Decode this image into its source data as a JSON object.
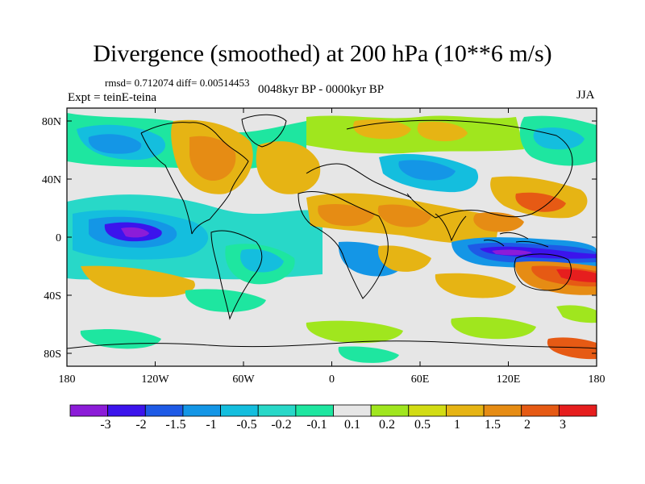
{
  "title": "Divergence (smoothed) at 200 hPa (10**6 m/s)",
  "stats": "rmsd= 0.712074 diff= 0.00514453",
  "experiment": "Expt = teinE-teina",
  "period": "0048kyr BP - 0000kyr BP",
  "season": "JJA",
  "x_ticks": [
    "180",
    "120W",
    "60W",
    "0",
    "60E",
    "120E",
    "180"
  ],
  "y_ticks": [
    "80N",
    "40N",
    "0",
    "40S",
    "80S"
  ],
  "colorbar": {
    "labels": [
      "-3",
      "-2",
      "-1.5",
      "-1",
      "-0.5",
      "-0.2",
      "-0.1",
      "0.1",
      "0.2",
      "0.5",
      "1",
      "1.5",
      "2",
      "3"
    ],
    "colors": [
      "#8c1cd8",
      "#3c14ec",
      "#1e5ae6",
      "#1496e6",
      "#14bede",
      "#28d8c8",
      "#1ee6a0",
      "#e6e6e6",
      "#a0e61e",
      "#d2dc14",
      "#e6b414",
      "#e68c14",
      "#e65a14",
      "#e61e1e"
    ]
  },
  "map": {
    "land_color": "#e6e6e6",
    "coast_color": "#000000"
  }
}
